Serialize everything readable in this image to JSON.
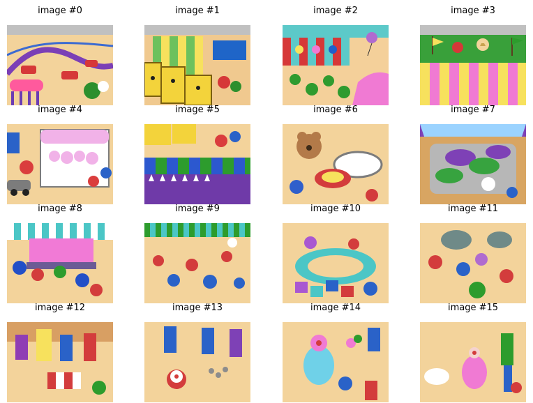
{
  "figure": {
    "panels": [
      {
        "title": "image #0",
        "scene": "Ferris wheel cars and striped booth with pink banner",
        "palette": [
          "#c0c0c0",
          "#f3d39b",
          "#7b3fb6",
          "#ff5a9d",
          "#2d8f2d"
        ]
      },
      {
        "title": "image #1",
        "scene": "Yellow portable toilets beside striped tent",
        "palette": [
          "#c0c0c0",
          "#f0c98f",
          "#f3d33b",
          "#6dc15d",
          "#1f65c8"
        ]
      },
      {
        "title": "image #2",
        "scene": "Game booth with balloons and crowd",
        "palette": [
          "#5cc9c9",
          "#f4d09a",
          "#d63838",
          "#2f9b2f",
          "#1f5fcc"
        ]
      },
      {
        "title": "image #3",
        "scene": "Green field and pink circus tent roof",
        "palette": [
          "#c0c0c0",
          "#39a03a",
          "#f07ad3",
          "#f7e15d",
          "#f3d39b"
        ]
      },
      {
        "title": "image #4",
        "scene": "Cotton candy stall with pink sweets",
        "palette": [
          "#ffffff",
          "#f1b2e8",
          "#f3d39b",
          "#2a62c8",
          "#da3d3d"
        ]
      },
      {
        "title": "image #5",
        "scene": "Blue and green canopy over crowd",
        "palette": [
          "#f3d39b",
          "#2c58cf",
          "#2d9c2d",
          "#ffffff",
          "#6f3aa8"
        ]
      },
      {
        "title": "image #6",
        "scene": "Bumper cars and teddy bear prize",
        "palette": [
          "#f3d39b",
          "#ffffff",
          "#d33c3c",
          "#b37a49",
          "#2f5fcb"
        ]
      },
      {
        "title": "image #7",
        "scene": "Bumper car ride with purple and green cars",
        "palette": [
          "#d8a562",
          "#7e41b6",
          "#37a33f",
          "#ffffff",
          "#9bd3ff"
        ]
      },
      {
        "title": "image #8",
        "scene": "Pink striped booth and people in line",
        "palette": [
          "#4bc6c6",
          "#f17ad6",
          "#f3d39b",
          "#224fc7",
          "#ffffff"
        ]
      },
      {
        "title": "image #9",
        "scene": "Dense fairground crowd under striped awning",
        "palette": [
          "#f3d39b",
          "#4bc6c6",
          "#d33c3c",
          "#2a62c8",
          "#2d9c2d"
        ]
      },
      {
        "title": "image #10",
        "scene": "Carousel ring and clowns with gifts",
        "palette": [
          "#f3d39b",
          "#4bc6c6",
          "#a957d1",
          "#d33c3c",
          "#2a62c8"
        ]
      },
      {
        "title": "image #11",
        "scene": "Elephants and people around circus area",
        "palette": [
          "#f3d39b",
          "#6f8a88",
          "#d33c3c",
          "#2a62c8",
          "#b06bcf"
        ]
      },
      {
        "title": "image #12",
        "scene": "Close crowd with striped shirts",
        "palette": [
          "#f3d39b",
          "#8f3db4",
          "#d33c3c",
          "#2a62c8",
          "#ffffff"
        ]
      },
      {
        "title": "image #13",
        "scene": "Clown with pigeons and spectators",
        "palette": [
          "#f3d39b",
          "#2a62c8",
          "#d33c3c",
          "#ffffff",
          "#7e41b6"
        ]
      },
      {
        "title": "image #14",
        "scene": "Fat clown with balloons and bystanders",
        "palette": [
          "#f3d39b",
          "#6fd1e8",
          "#f07ad3",
          "#d33c3c",
          "#2d9c2d"
        ]
      },
      {
        "title": "image #15",
        "scene": "Clown, dog and onlookers",
        "palette": [
          "#f3d39b",
          "#ffffff",
          "#f07ad3",
          "#2a62c8",
          "#2d9c2d"
        ]
      }
    ]
  }
}
